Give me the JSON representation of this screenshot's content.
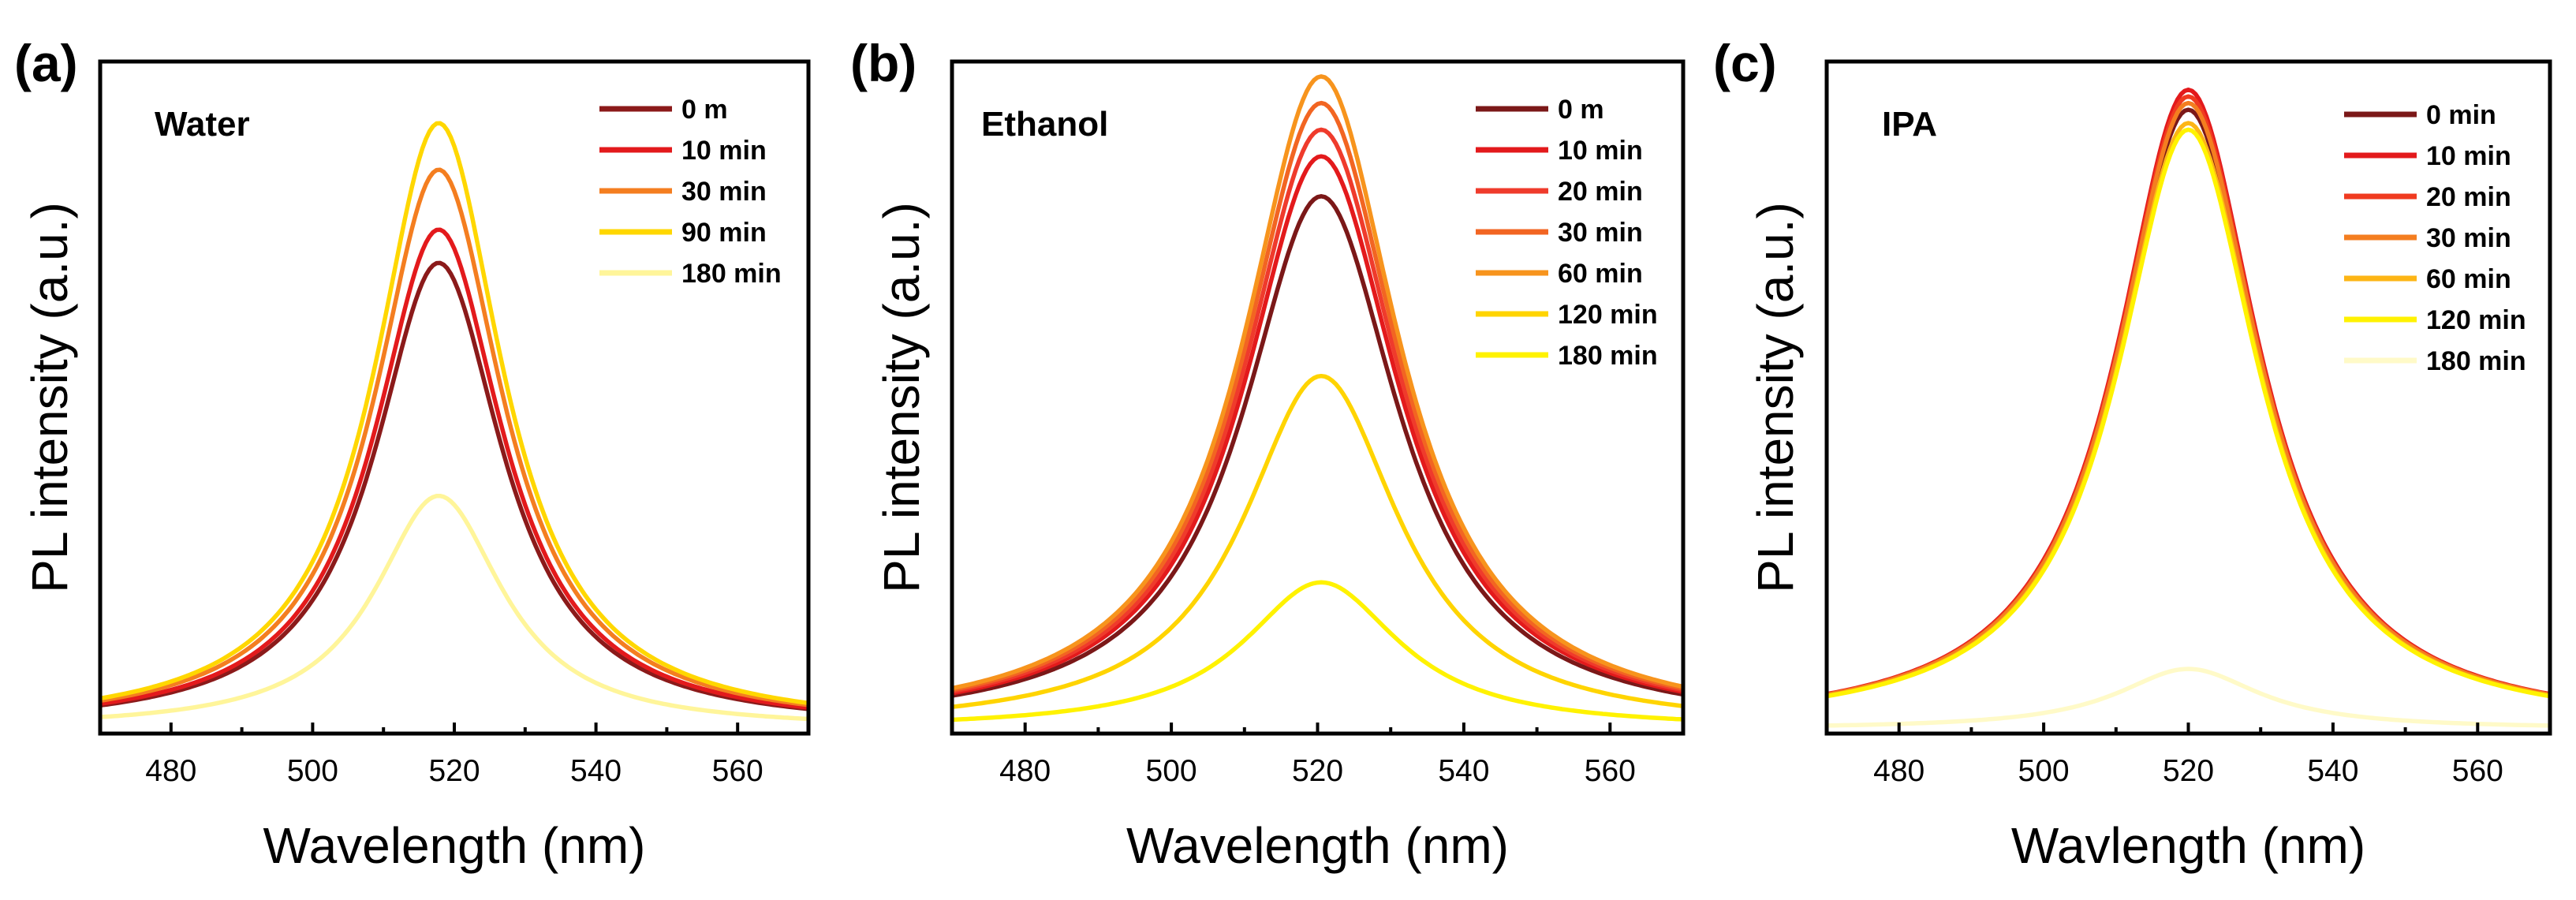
{
  "figure": {
    "panel_count": 3
  },
  "chart_data": [
    {
      "type": "line",
      "panel_label": "(a)",
      "title": "Water",
      "xlabel": "Wavelength (nm)",
      "ylabel": "PL intensity (a.u.)",
      "xlim": [
        470,
        570
      ],
      "ylim": [
        0,
        1.0
      ],
      "xticks": [
        480,
        500,
        520,
        540,
        560
      ],
      "yticks_shown": false,
      "legend_position": "top-right",
      "peak_model": "lorentzian",
      "fwhm_nm": 22,
      "series": [
        {
          "name": "0 m",
          "color": "#8b1a1a",
          "peak_nm": 517.8,
          "peak_value": 0.7
        },
        {
          "name": "10 min",
          "color": "#e31a1c",
          "peak_nm": 517.8,
          "peak_value": 0.75
        },
        {
          "name": "30 min",
          "color": "#f47e20",
          "peak_nm": 517.8,
          "peak_value": 0.84
        },
        {
          "name": "90 min",
          "color": "#ffd700",
          "peak_nm": 517.8,
          "peak_value": 0.91
        },
        {
          "name": "180 min",
          "color": "#fff59a",
          "peak_nm": 517.8,
          "peak_value": 0.35
        }
      ]
    },
    {
      "type": "line",
      "panel_label": "(b)",
      "title": "Ethanol",
      "xlabel": "Wavelength (nm)",
      "ylabel": "PL intensity (a.u.)",
      "xlim": [
        470,
        570
      ],
      "ylim": [
        0,
        1.0
      ],
      "xticks": [
        480,
        500,
        520,
        540,
        560
      ],
      "yticks_shown": false,
      "legend_position": "top-right",
      "peak_model": "lorentzian",
      "fwhm_nm": 26,
      "series": [
        {
          "name": "0 m",
          "color": "#7b1818",
          "peak_nm": 520.5,
          "peak_value": 0.8
        },
        {
          "name": "10 min",
          "color": "#e31a1c",
          "peak_nm": 520.5,
          "peak_value": 0.86
        },
        {
          "name": "20 min",
          "color": "#ef3b2c",
          "peak_nm": 520.5,
          "peak_value": 0.9
        },
        {
          "name": "30 min",
          "color": "#f26522",
          "peak_nm": 520.5,
          "peak_value": 0.94
        },
        {
          "name": "60 min",
          "color": "#f7941d",
          "peak_nm": 520.5,
          "peak_value": 0.98
        },
        {
          "name": "120 min",
          "color": "#ffd400",
          "peak_nm": 520.5,
          "peak_value": 0.53
        },
        {
          "name": "180 min",
          "color": "#fff200",
          "peak_nm": 520.5,
          "peak_value": 0.22
        }
      ]
    },
    {
      "type": "line",
      "panel_label": "(c)",
      "title": "IPA",
      "xlabel": "Wavlength (nm)",
      "ylabel": "PL intensity (a.u.)",
      "xlim": [
        470,
        570
      ],
      "ylim": [
        0,
        1.0
      ],
      "xticks": [
        480,
        500,
        520,
        540,
        560
      ],
      "yticks_shown": false,
      "legend_position": "top-right",
      "peak_model": "lorentzian",
      "fwhm_nm": 24,
      "series": [
        {
          "name": "0 min",
          "color": "#7b1818",
          "peak_nm": 520,
          "peak_value": 0.93
        },
        {
          "name": "10 min",
          "color": "#e31a1c",
          "peak_nm": 520,
          "peak_value": 0.96
        },
        {
          "name": "20 min",
          "color": "#f03b20",
          "peak_nm": 520,
          "peak_value": 0.95
        },
        {
          "name": "30 min",
          "color": "#f47e20",
          "peak_nm": 520,
          "peak_value": 0.94
        },
        {
          "name": "60 min",
          "color": "#fdb515",
          "peak_nm": 520,
          "peak_value": 0.91
        },
        {
          "name": "120 min",
          "color": "#fff200",
          "peak_nm": 520,
          "peak_value": 0.9
        },
        {
          "name": "180 min",
          "color": "#fffac8",
          "peak_nm": 520,
          "peak_value": 0.09
        }
      ]
    }
  ]
}
